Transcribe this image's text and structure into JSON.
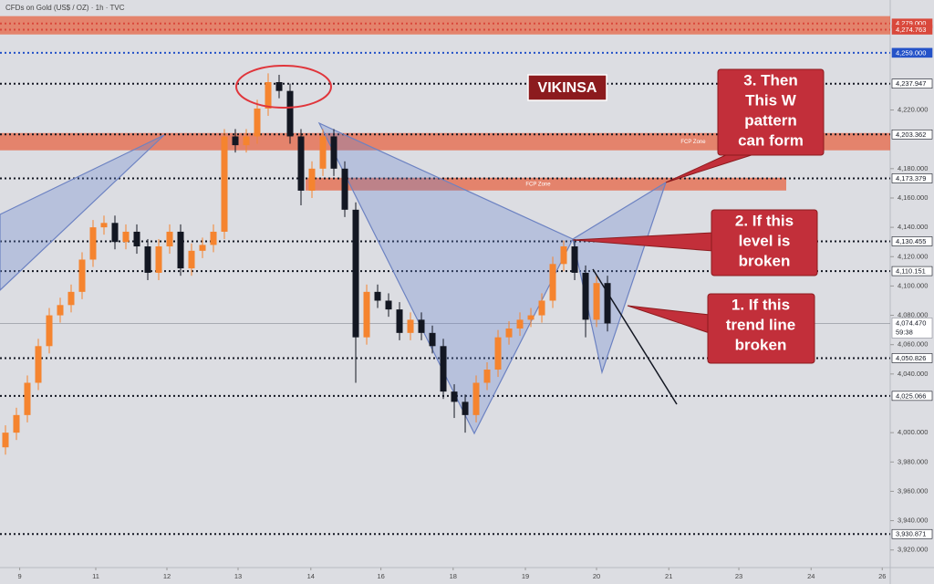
{
  "chart_data": {
    "type": "candlestick",
    "title": "CFDs on Gold (US$ / OZ) · 1h · TVC",
    "x": [
      0.5,
      1.5,
      2.5,
      3.5,
      4.5,
      5.5,
      6.5,
      7.5,
      8.5,
      9.5,
      10.5,
      11.5,
      12.5,
      13.5,
      14.5,
      15.5,
      16.5,
      17.5,
      18.5,
      19.5,
      20.5,
      21.5,
      22.5,
      23.5,
      24.5,
      25.5,
      26.5,
      27.5,
      28.5,
      29.5,
      30.5,
      31.5,
      32.5,
      33.5,
      34.5,
      35.5,
      36.5,
      37.5,
      38.5,
      39.5,
      40.5,
      41.5,
      42.5,
      43.5,
      44.5,
      45.5,
      46.5,
      47.5,
      48.5,
      49.5,
      50.5,
      51.5,
      52.5,
      53.5,
      54.5,
      55.5
    ],
    "open": [
      3990,
      4000,
      4012,
      4034,
      4059,
      4080,
      4087,
      4096,
      4118,
      4140,
      4143,
      4130,
      4137,
      4127,
      4109,
      4127,
      4137,
      4112,
      4124,
      4128,
      4137,
      4202,
      4196,
      4202,
      4221,
      4239,
      4233,
      4202,
      4165,
      4180,
      4202,
      4180,
      4152,
      4065,
      4096,
      4090,
      4084,
      4068,
      4077,
      4068,
      4059,
      4028,
      4021,
      4012,
      4034,
      4043,
      4065,
      4071,
      4077,
      4080,
      4090,
      4115,
      4127,
      4109,
      4077,
      4102
    ],
    "high": [
      4005,
      4017,
      4039,
      4064,
      4085,
      4092,
      4101,
      4123,
      4145,
      4148,
      4148,
      4142,
      4142,
      4132,
      4132,
      4142,
      4142,
      4129,
      4133,
      4142,
      4207,
      4207,
      4207,
      4227,
      4245,
      4244,
      4238,
      4207,
      4185,
      4207,
      4207,
      4185,
      4157,
      4101,
      4101,
      4095,
      4089,
      4082,
      4082,
      4073,
      4064,
      4033,
      4026,
      4039,
      4048,
      4070,
      4076,
      4082,
      4085,
      4095,
      4120,
      4131,
      4132,
      4114,
      4107,
      4107
    ],
    "low": [
      3985,
      3995,
      4007,
      4029,
      4054,
      4075,
      4082,
      4091,
      4113,
      4135,
      4125,
      4125,
      4122,
      4104,
      4104,
      4122,
      4107,
      4107,
      4119,
      4123,
      4132,
      4191,
      4191,
      4197,
      4216,
      4228,
      4197,
      4155,
      4160,
      4175,
      4175,
      4147,
      4034,
      4060,
      4085,
      4079,
      4063,
      4063,
      4063,
      4054,
      4023,
      4010,
      4000,
      4007,
      4029,
      4038,
      4060,
      4066,
      4072,
      4075,
      4085,
      4110,
      4104,
      4065,
      4072,
      4069
    ],
    "close": [
      4000,
      4012,
      4034,
      4059,
      4080,
      4087,
      4096,
      4118,
      4140,
      4143,
      4130,
      4137,
      4127,
      4109,
      4127,
      4137,
      4112,
      4124,
      4128,
      4137,
      4202,
      4196,
      4202,
      4221,
      4239,
      4233,
      4202,
      4165,
      4180,
      4202,
      4180,
      4152,
      4065,
      4096,
      4090,
      4084,
      4068,
      4077,
      4068,
      4059,
      4028,
      4021,
      4012,
      4034,
      4043,
      4065,
      4071,
      4077,
      4080,
      4090,
      4115,
      4127,
      4109,
      4077,
      4102,
      4074.47
    ],
    "up_color": "#f5842f",
    "down_color": "#131722",
    "xlim": [
      0,
      81.33
    ],
    "ylim": [
      3908,
      4295
    ],
    "xticks": [
      {
        "value": 1.8,
        "label": "9"
      },
      {
        "value": 8.75,
        "label": "11"
      },
      {
        "value": 15.25,
        "label": "12"
      },
      {
        "value": 21.75,
        "label": "13"
      },
      {
        "value": 28.4,
        "label": "14"
      },
      {
        "value": 34.8,
        "label": "16"
      },
      {
        "value": 41.4,
        "label": "18"
      },
      {
        "value": 48,
        "label": "19"
      },
      {
        "value": 54.5,
        "label": "20"
      },
      {
        "value": 61.1,
        "label": "21"
      },
      {
        "value": 67.5,
        "label": "23"
      },
      {
        "value": 74.1,
        "label": "24"
      },
      {
        "value": 80.6,
        "label": "26"
      }
    ],
    "yticks": [
      {
        "value": 3920,
        "label": "3,920.000"
      },
      {
        "value": 3940,
        "label": "3,940.000"
      },
      {
        "value": 3960,
        "label": "3,960.000"
      },
      {
        "value": 3980,
        "label": "3,980.000"
      },
      {
        "value": 4000,
        "label": "4,000.000"
      },
      {
        "value": 4040,
        "label": "4,040.000"
      },
      {
        "value": 4060,
        "label": "4,060.000"
      },
      {
        "value": 4080,
        "label": "4,080.000"
      },
      {
        "value": 4100,
        "label": "4,100.000"
      },
      {
        "value": 4120,
        "label": "4,120.000"
      },
      {
        "value": 4140,
        "label": "4,140.000"
      },
      {
        "value": 4160,
        "label": "4,160.000"
      },
      {
        "value": 4180,
        "label": "4,180.000"
      },
      {
        "value": 4220,
        "label": "4,220.000"
      }
    ],
    "levels": [
      {
        "value": 4279,
        "label": "4,279.000",
        "color": "#d9483b"
      },
      {
        "value": 4274.763,
        "label": "4,274.763",
        "color": "#d9483b"
      },
      {
        "value": 4259,
        "label": "4,259.000",
        "color": "#2452c8"
      },
      {
        "value": 4237.947,
        "label": "4,237.947",
        "color": "#131722"
      },
      {
        "value": 4203.362,
        "label": "4,203.362",
        "color": "#131722"
      },
      {
        "value": 4173.379,
        "label": "4,173.379",
        "color": "#131722"
      },
      {
        "value": 4130.455,
        "label": "4,130.455",
        "color": "#131722"
      },
      {
        "value": 4110.151,
        "label": "4,110.151",
        "color": "#131722"
      },
      {
        "value": 4050.826,
        "label": "4,050.826",
        "color": "#131722"
      },
      {
        "value": 4025.066,
        "label": "4,025.066",
        "color": "#131722"
      },
      {
        "value": 3930.871,
        "label": "3,930.871",
        "color": "#131722"
      }
    ],
    "current_price": {
      "value": 4074.47,
      "label": "4,074.470",
      "countdown": "59:38"
    },
    "zones": [
      {
        "low": 4271.5,
        "high": 4284
      },
      {
        "low": 4192.5,
        "high": 4204.3,
        "label": "FCP Zone"
      },
      {
        "low": 4165.1,
        "high": 4173.8,
        "label": "FCP Zone"
      }
    ],
    "watermark": "VIKINSA",
    "annotations": [
      {
        "lines": [
          "3. Then",
          "This W",
          "pattern",
          "can form"
        ]
      },
      {
        "lines": [
          "2. If this",
          "level is",
          "broken"
        ]
      },
      {
        "lines": [
          "1. If this",
          "trend line",
          "broken"
        ]
      }
    ]
  }
}
